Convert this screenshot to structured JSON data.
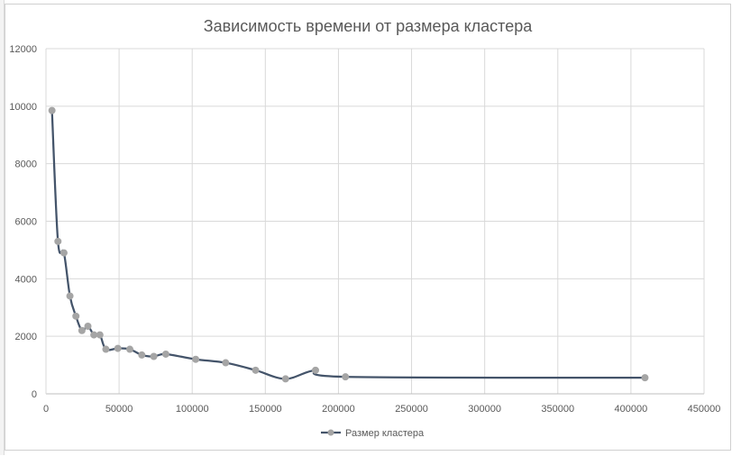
{
  "chart_data": {
    "type": "line",
    "title": "Зависимость времени от размера кластера",
    "xlabel": "",
    "ylabel": "",
    "xlim": [
      0,
      450000
    ],
    "ylim": [
      0,
      12000
    ],
    "x_ticks": [
      "0",
      "50000",
      "100000",
      "150000",
      "200000",
      "250000",
      "300000",
      "350000",
      "400000",
      "450000"
    ],
    "y_ticks": [
      "0",
      "2000",
      "4000",
      "6000",
      "8000",
      "10000",
      "12000"
    ],
    "grid": true,
    "smoothed": true,
    "legend_position": "bottom",
    "series": [
      {
        "name": "Размер кластера",
        "color": "#44546a",
        "marker_color": "#a5a5a5",
        "points": [
          [
            4096,
            9850
          ],
          [
            8192,
            5300
          ],
          [
            12288,
            4900
          ],
          [
            16384,
            3400
          ],
          [
            20480,
            2700
          ],
          [
            24576,
            2200
          ],
          [
            28672,
            2350
          ],
          [
            32768,
            2050
          ],
          [
            36864,
            2050
          ],
          [
            40960,
            1550
          ],
          [
            49152,
            1580
          ],
          [
            57344,
            1550
          ],
          [
            65536,
            1350
          ],
          [
            73728,
            1300
          ],
          [
            81920,
            1380
          ],
          [
            102400,
            1200
          ],
          [
            122880,
            1080
          ],
          [
            143360,
            820
          ],
          [
            163840,
            520
          ],
          [
            184320,
            820
          ],
          [
            204800,
            590
          ],
          [
            409600,
            560
          ]
        ]
      }
    ]
  }
}
